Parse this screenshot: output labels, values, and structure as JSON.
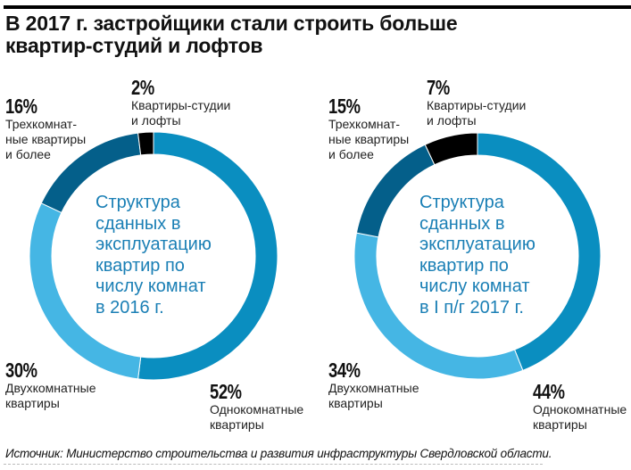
{
  "title": "В 2017 г. застройщики стали строить больше квартир-студий и лофтов",
  "source": "Источник: Министерство строительства и развития инфраструктуры Свердловской области.",
  "colors": {
    "one_room": "#0a8ec0",
    "two_room": "#45b6e4",
    "three_room": "#045f8a",
    "studios": "#000000",
    "center_text": "#1a7fb5"
  },
  "chart_data": [
    {
      "type": "pie",
      "donut": true,
      "title": "Структура\nсданных в\nэксплуатацию\nквартир по\nчислу комнат\nв 2016 г.",
      "start": "top",
      "direction": "clockwise",
      "slices": [
        {
          "key": "one_room",
          "pct_label": "52%",
          "value": 52,
          "label": "Однокомнатные\nквартиры"
        },
        {
          "key": "two_room",
          "pct_label": "30%",
          "value": 30,
          "label": "Двухкомнатные\nквартиры"
        },
        {
          "key": "three_room",
          "pct_label": "16%",
          "value": 16,
          "label": "Трехкомнат-\nные квартиры\nи более"
        },
        {
          "key": "studios",
          "pct_label": "2%",
          "value": 2,
          "label": "Квартиры-студии\nи лофты"
        }
      ]
    },
    {
      "type": "pie",
      "donut": true,
      "title": "Структура\nсданных в\nэксплуатацию\nквартир по\nчислу комнат\nв I п/г 2017 г.",
      "start": "top",
      "direction": "clockwise",
      "slices": [
        {
          "key": "one_room",
          "pct_label": "44%",
          "value": 44,
          "label": "Однокомнатные\nквартиры"
        },
        {
          "key": "two_room",
          "pct_label": "34%",
          "value": 34,
          "label": "Двухкомнатные\nквартиры"
        },
        {
          "key": "three_room",
          "pct_label": "15%",
          "value": 15,
          "label": "Трехкомнат-\nные квартиры\nи более"
        },
        {
          "key": "studios",
          "pct_label": "7%",
          "value": 7,
          "label": "Квартиры-студии\nи лофты"
        }
      ]
    }
  ]
}
